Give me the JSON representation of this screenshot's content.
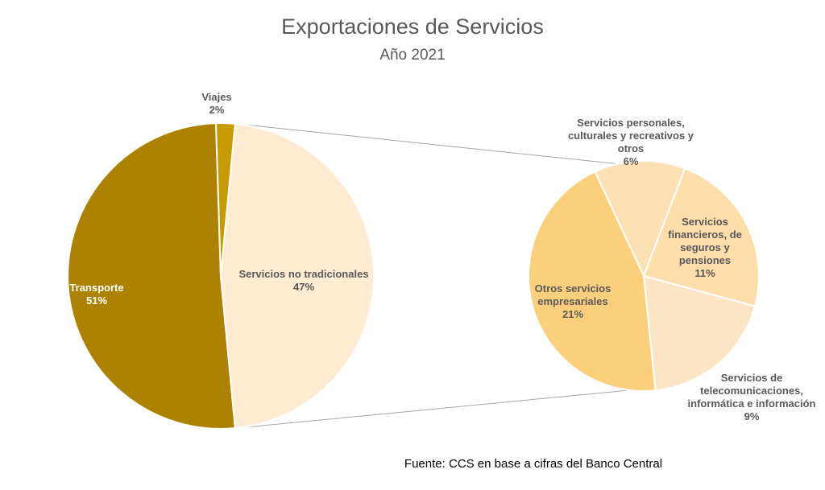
{
  "chart_data": {
    "type": "pie",
    "title": "Exportaciones de Servicios",
    "subtitle": "Año 2021",
    "source": "Fuente: CCS en base a cifras del Banco Central",
    "main_pie": {
      "slices": [
        {
          "label": "Transporte",
          "value": 51,
          "value_label": "51%",
          "color": "#AD8200"
        },
        {
          "label": "Viajes",
          "value": 2,
          "value_label": "2%",
          "color": "#C79A00"
        },
        {
          "label": "Servicios no tradicionales",
          "value": 47,
          "value_label": "47%",
          "color": "#FFEBD2"
        }
      ]
    },
    "breakdown_pie": {
      "of": "Servicios no tradicionales",
      "slices": [
        {
          "label_lines": [
            "Servicios personales,",
            "culturales y recreativos y",
            "otros"
          ],
          "value": 6,
          "value_label": "6%",
          "color": "#FDDFB4"
        },
        {
          "label_lines": [
            "Servicios",
            "financieros, de",
            "seguros y",
            "pensiones"
          ],
          "value": 11,
          "value_label": "11%",
          "color": "#FDDDA9"
        },
        {
          "label_lines": [
            "Servicios de",
            "telecomunicaciones,",
            "informática e información"
          ],
          "value": 9,
          "value_label": "9%",
          "color": "#FCE5C5"
        },
        {
          "label_lines": [
            "Otros servicios",
            "empresariales"
          ],
          "value": 21,
          "value_label": "21%",
          "color": "#FCCF7C"
        }
      ]
    }
  }
}
